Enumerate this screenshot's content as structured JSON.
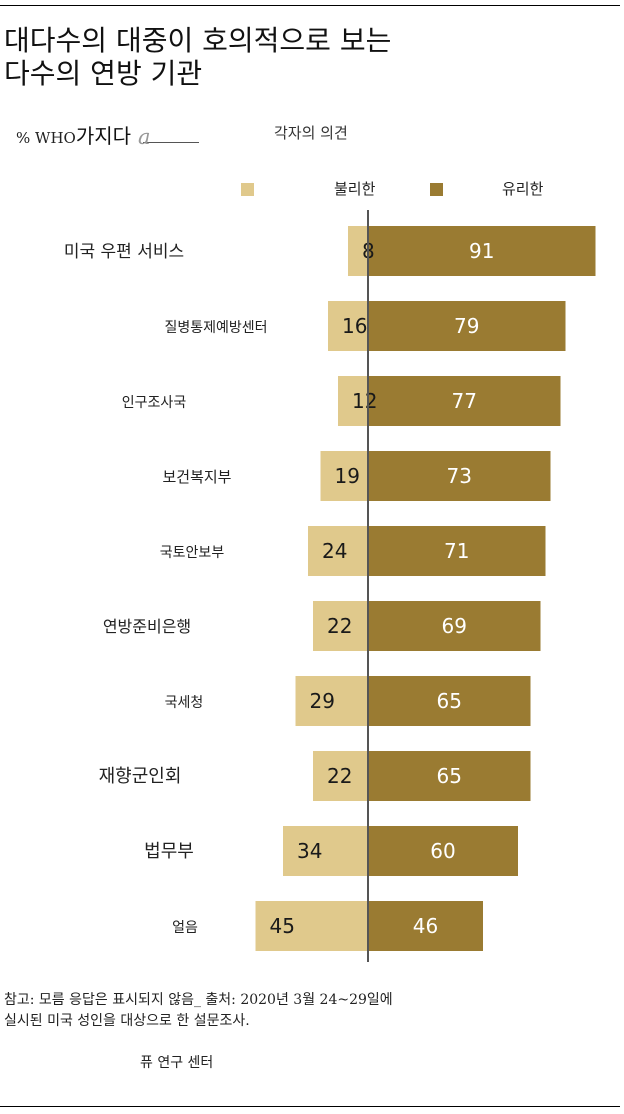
{
  "header": {
    "title": "대다수의 대중이 호의적으로 보는\n다수의 연방 기관",
    "pct_prefix": "% WHO",
    "pct_big": "가지다",
    "pct_a": "a",
    "opinion_label": "각자의 의견"
  },
  "legend": {
    "unfavorable": "불리한",
    "favorable": "유리한"
  },
  "colors": {
    "unfavorable": "#e0c98c",
    "favorable": "#9a7b32",
    "axis": "#555555"
  },
  "chart_data": {
    "type": "bar",
    "orientation": "horizontal",
    "stacked": "diverging",
    "categories": [
      "미국 우편 서비스",
      "질병통제예방센터",
      "인구조사국",
      "보건복지부",
      "국토안보부",
      "연방준비은행",
      "국세청",
      "재향군인회",
      "법무부",
      "얼음"
    ],
    "series": [
      {
        "name": "불리한",
        "values": [
          8,
          16,
          12,
          19,
          24,
          22,
          29,
          22,
          34,
          45
        ]
      },
      {
        "name": "유리한",
        "values": [
          91,
          79,
          77,
          73,
          71,
          69,
          65,
          65,
          60,
          46
        ]
      }
    ],
    "legend_position": "top",
    "grid": false
  },
  "footer": {
    "note": "참고: 모름 응답은 표시되지 않음_ 출처: 2020년 3월 24~29일에\n실시된 미국 성인을 대상으로 한 설문조사.",
    "source": "퓨 연구 센터"
  }
}
